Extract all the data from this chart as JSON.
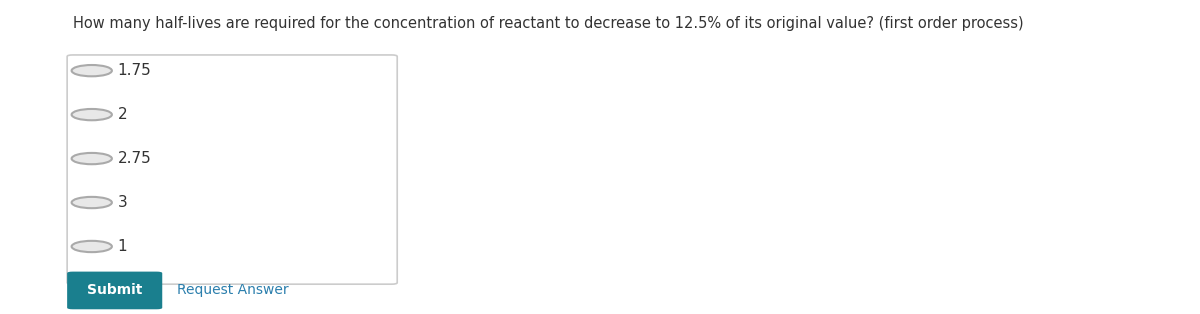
{
  "question": "How many half-lives are required for the concentration of reactant to decrease to 12.5% of its original value? (first order process)",
  "options": [
    "1.75",
    "2",
    "2.75",
    "3",
    "1"
  ],
  "submit_text": "Submit",
  "request_answer_text": "Request Answer",
  "background_color": "#ffffff",
  "box_border_color": "#cccccc",
  "radio_border_color": "#aaaaaa",
  "radio_fill_color": "#e8e8e8",
  "option_text_color": "#333333",
  "question_text_color": "#333333",
  "submit_bg_color": "#1a7f8e",
  "submit_text_color": "#ffffff",
  "request_answer_color": "#2b7fad",
  "question_fontsize": 10.5,
  "option_fontsize": 11,
  "submit_fontsize": 10,
  "request_fontsize": 10
}
